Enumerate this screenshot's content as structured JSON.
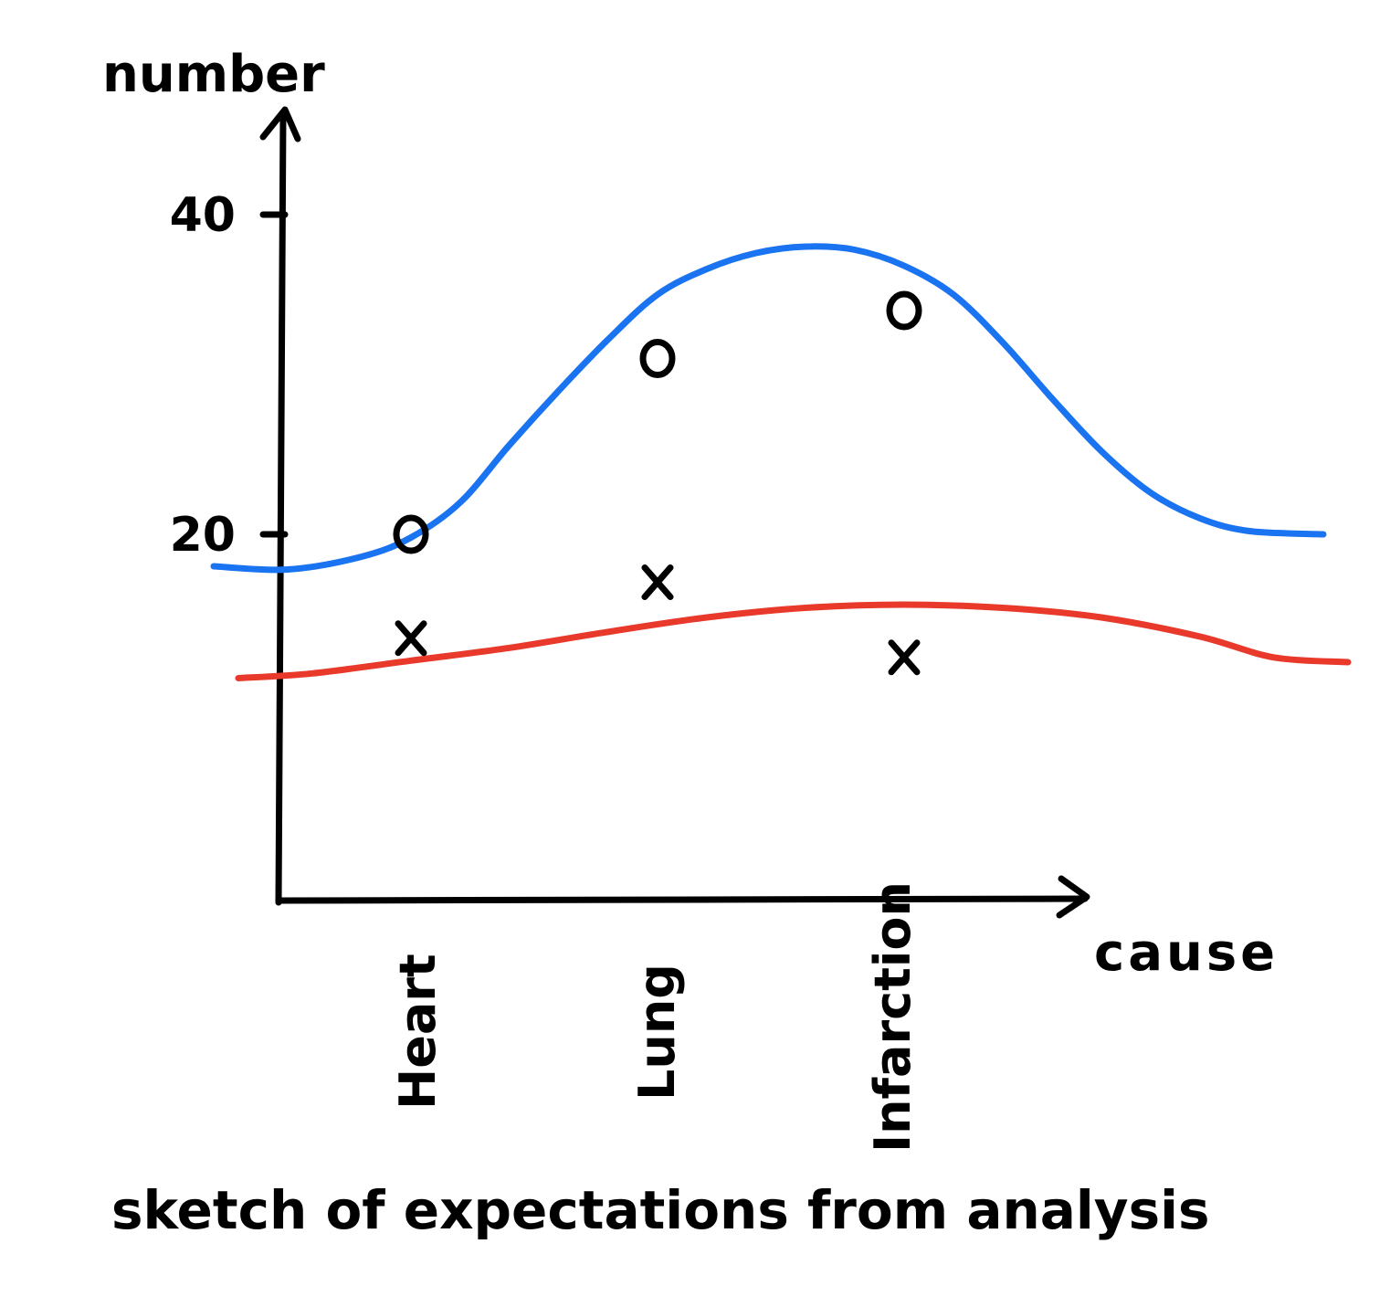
{
  "chart_data": {
    "type": "line",
    "title": "sketch of expectations from analysis",
    "xlabel": "cause",
    "ylabel": "number",
    "categories": [
      "Heart",
      "Lung",
      "Infarction"
    ],
    "yticks": [
      20,
      40
    ],
    "ylim": [
      0,
      44
    ],
    "grid": false,
    "curves": [
      {
        "color": "#1a73f0",
        "x": [
          0.2,
          0.5,
          0.8,
          1.0,
          1.2,
          1.4,
          1.6,
          1.8,
          2.0,
          2.2,
          2.4,
          2.6,
          2.8,
          3.0,
          3.2,
          3.4,
          3.6,
          3.8,
          4.0,
          4.2,
          4.4,
          4.7
        ],
        "y": [
          18.0,
          17.8,
          18.6,
          19.8,
          22.0,
          25.6,
          29.0,
          32.2,
          35.0,
          36.6,
          37.6,
          38.0,
          37.8,
          36.8,
          35.0,
          32.0,
          28.5,
          25.2,
          22.6,
          21.0,
          20.2,
          20.0
        ]
      },
      {
        "color": "#e8392b",
        "x": [
          0.3,
          0.6,
          1.0,
          1.4,
          1.8,
          2.2,
          2.6,
          3.0,
          3.4,
          3.8,
          4.2,
          4.5,
          4.8
        ],
        "y": [
          11.0,
          11.3,
          12.1,
          12.9,
          13.9,
          14.8,
          15.4,
          15.6,
          15.4,
          14.8,
          13.6,
          12.3,
          12.0
        ]
      }
    ],
    "markers": [
      {
        "symbol": "o",
        "x": [
          1.0,
          2.0,
          3.0
        ],
        "y": [
          20.0,
          31.0,
          34.0
        ]
      },
      {
        "symbol": "x",
        "x": [
          1.0,
          2.0,
          3.0
        ],
        "y": [
          13.5,
          17.0,
          12.3
        ]
      }
    ]
  }
}
